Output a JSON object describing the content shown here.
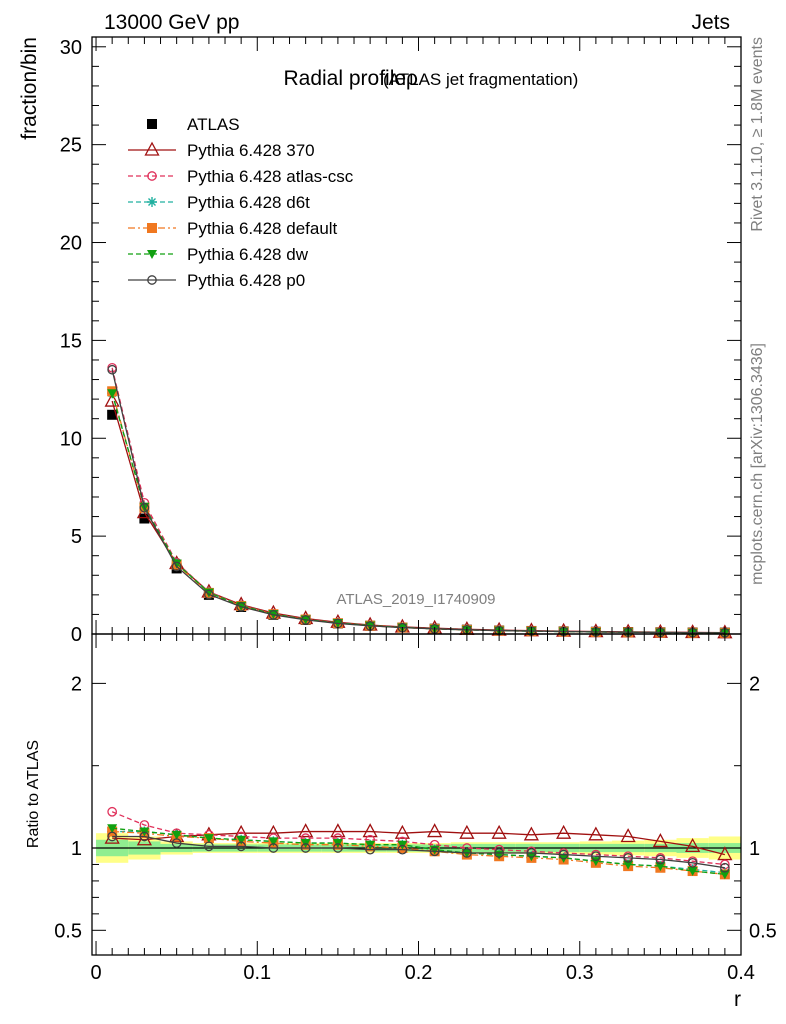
{
  "header": {
    "left": "13000 GeV pp",
    "right": "Jets"
  },
  "side_labels": {
    "rivet": "Rivet 3.1.10, ≥ 1.8M events",
    "mcplots": "mcplots.cern.ch [arXiv:1306.3436]"
  },
  "chart_data": [
    {
      "type": "line",
      "title": "Radial profileρ",
      "subtitle": "(ATLAS jet fragmentation)",
      "watermark": "ATLAS_2019_I1740909",
      "xlabel": "r",
      "ylabel": "fraction/bin",
      "xlim": [
        -0.0025,
        0.4
      ],
      "ylim": [
        0,
        30.5
      ],
      "x_ticks": [
        0,
        0.1,
        0.2,
        0.3,
        0.4
      ],
      "x_tick_labels": [
        "0",
        "0.1",
        "0.2",
        "0.3",
        "0.4"
      ],
      "y_ticks": [
        0,
        5,
        10,
        15,
        20,
        25,
        30
      ],
      "y_tick_labels": [
        "0",
        "5",
        "10",
        "15",
        "20",
        "25",
        "30"
      ],
      "legend_position": "top-left",
      "x": [
        0.01,
        0.03,
        0.05,
        0.07,
        0.09,
        0.11,
        0.13,
        0.15,
        0.17,
        0.19,
        0.21,
        0.23,
        0.25,
        0.27,
        0.29,
        0.31,
        0.33,
        0.35,
        0.37,
        0.39
      ],
      "series": [
        {
          "name": "ATLAS",
          "color": "#000000",
          "marker": "square-filled",
          "line": "none",
          "values": [
            11.2,
            5.9,
            3.35,
            2.0,
            1.38,
            0.98,
            0.72,
            0.54,
            0.42,
            0.33,
            0.27,
            0.22,
            0.18,
            0.155,
            0.135,
            0.115,
            0.1,
            0.088,
            0.078,
            0.07
          ]
        },
        {
          "name": "Pythia 6.428 370",
          "color": "#a01010",
          "marker": "triangle-open",
          "line": "solid",
          "values": [
            11.9,
            6.2,
            3.6,
            2.15,
            1.5,
            1.07,
            0.79,
            0.6,
            0.46,
            0.36,
            0.3,
            0.24,
            0.2,
            0.17,
            0.148,
            0.125,
            0.108,
            0.092,
            0.079,
            0.067
          ]
        },
        {
          "name": "Pythia 6.428 atlas-csc",
          "color": "#e0305a",
          "marker": "circle-open",
          "line": "dashed",
          "values": [
            13.6,
            6.7,
            3.65,
            2.15,
            1.47,
            1.04,
            0.76,
            0.57,
            0.44,
            0.34,
            0.275,
            0.22,
            0.178,
            0.15,
            0.128,
            0.107,
            0.092,
            0.079,
            0.071,
            0.063
          ]
        },
        {
          "name": "Pythia 6.428 d6t",
          "color": "#20b0a0",
          "marker": "star",
          "line": "dashed",
          "values": [
            12.3,
            6.5,
            3.6,
            2.12,
            1.44,
            1.02,
            0.74,
            0.56,
            0.43,
            0.335,
            0.265,
            0.212,
            0.172,
            0.146,
            0.125,
            0.103,
            0.088,
            0.077,
            0.067,
            0.06
          ]
        },
        {
          "name": "Pythia 6.428 default",
          "color": "#f07820",
          "marker": "square-filled",
          "line": "dashdot",
          "values": [
            12.4,
            6.45,
            3.55,
            2.1,
            1.43,
            1.01,
            0.74,
            0.55,
            0.425,
            0.33,
            0.26,
            0.21,
            0.17,
            0.145,
            0.123,
            0.102,
            0.086,
            0.075,
            0.066,
            0.059
          ]
        },
        {
          "name": "Pythia 6.428 dw",
          "color": "#10a010",
          "marker": "triangle-down-filled",
          "line": "dashed",
          "values": [
            12.3,
            6.5,
            3.6,
            2.12,
            1.44,
            1.02,
            0.74,
            0.56,
            0.43,
            0.335,
            0.265,
            0.212,
            0.172,
            0.146,
            0.125,
            0.103,
            0.088,
            0.077,
            0.067,
            0.059
          ]
        },
        {
          "name": "Pythia 6.428 p0",
          "color": "#404040",
          "marker": "circle-open",
          "line": "solid",
          "values": [
            13.5,
            6.45,
            3.45,
            2.02,
            1.39,
            0.98,
            0.72,
            0.54,
            0.415,
            0.325,
            0.265,
            0.215,
            0.175,
            0.15,
            0.128,
            0.107,
            0.092,
            0.08,
            0.07,
            0.062
          ]
        }
      ]
    },
    {
      "type": "line",
      "ylabel": "Ratio to ATLAS",
      "xlabel": "r",
      "xlim": [
        -0.0025,
        0.4
      ],
      "ylim": [
        0.35,
        2.3
      ],
      "y_ticks": [
        0.5,
        1,
        2
      ],
      "y_tick_labels": [
        "0.5",
        "1",
        "2"
      ],
      "uncertainty_bands": {
        "inner_color": "#90ee90",
        "outer_color": "#ffff88",
        "x_edges": [
          0.0,
          0.02,
          0.04,
          0.06,
          0.08,
          0.1,
          0.12,
          0.14,
          0.16,
          0.18,
          0.2,
          0.22,
          0.24,
          0.26,
          0.28,
          0.3,
          0.32,
          0.34,
          0.36,
          0.38,
          0.4
        ],
        "inner": [
          0.05,
          0.04,
          0.025,
          0.022,
          0.022,
          0.022,
          0.022,
          0.022,
          0.022,
          0.022,
          0.022,
          0.025,
          0.025,
          0.025,
          0.025,
          0.025,
          0.025,
          0.025,
          0.03,
          0.03
        ],
        "outer": [
          0.09,
          0.07,
          0.04,
          0.03,
          0.03,
          0.03,
          0.03,
          0.03,
          0.03,
          0.03,
          0.03,
          0.035,
          0.035,
          0.035,
          0.035,
          0.04,
          0.045,
          0.05,
          0.06,
          0.07
        ]
      },
      "x": [
        0.01,
        0.03,
        0.05,
        0.07,
        0.09,
        0.11,
        0.13,
        0.15,
        0.17,
        0.19,
        0.21,
        0.23,
        0.25,
        0.27,
        0.29,
        0.31,
        0.33,
        0.35,
        0.37,
        0.39
      ],
      "series": [
        {
          "name": "Pythia 6.428 370",
          "color": "#a01010",
          "marker": "triangle-open",
          "line": "solid",
          "values": [
            1.06,
            1.05,
            1.07,
            1.08,
            1.09,
            1.09,
            1.1,
            1.1,
            1.1,
            1.09,
            1.1,
            1.09,
            1.09,
            1.08,
            1.09,
            1.08,
            1.07,
            1.04,
            1.01,
            0.96
          ]
        },
        {
          "name": "Pythia 6.428 atlas-csc",
          "color": "#e0305a",
          "marker": "circle-open",
          "line": "dashed",
          "values": [
            1.22,
            1.14,
            1.09,
            1.08,
            1.07,
            1.06,
            1.06,
            1.06,
            1.05,
            1.04,
            1.02,
            1.0,
            0.99,
            0.98,
            0.97,
            0.96,
            0.95,
            0.94,
            0.92,
            0.9
          ]
        },
        {
          "name": "Pythia 6.428 d6t",
          "color": "#20b0a0",
          "marker": "star",
          "line": "dashed",
          "values": [
            1.1,
            1.1,
            1.08,
            1.06,
            1.05,
            1.04,
            1.03,
            1.03,
            1.02,
            1.02,
            0.99,
            0.97,
            0.96,
            0.95,
            0.94,
            0.92,
            0.9,
            0.89,
            0.87,
            0.85
          ]
        },
        {
          "name": "Pythia 6.428 default",
          "color": "#f07820",
          "marker": "square-filled",
          "line": "dashdot",
          "values": [
            1.1,
            1.09,
            1.07,
            1.06,
            1.04,
            1.03,
            1.02,
            1.02,
            1.01,
            1.0,
            0.98,
            0.96,
            0.95,
            0.94,
            0.93,
            0.91,
            0.89,
            0.88,
            0.86,
            0.84
          ]
        },
        {
          "name": "Pythia 6.428 dw",
          "color": "#10a010",
          "marker": "triangle-down-filled",
          "line": "dashed",
          "values": [
            1.12,
            1.1,
            1.08,
            1.06,
            1.05,
            1.04,
            1.03,
            1.03,
            1.02,
            1.02,
            0.99,
            0.97,
            0.96,
            0.95,
            0.94,
            0.92,
            0.9,
            0.89,
            0.86,
            0.84
          ]
        },
        {
          "name": "Pythia 6.428 p0",
          "color": "#404040",
          "marker": "circle-open",
          "line": "solid",
          "values": [
            1.07,
            1.07,
            1.03,
            1.01,
            1.01,
            1.0,
            1.0,
            1.0,
            0.99,
            0.99,
            0.98,
            0.97,
            0.97,
            0.97,
            0.96,
            0.95,
            0.94,
            0.93,
            0.91,
            0.88
          ]
        }
      ]
    }
  ]
}
